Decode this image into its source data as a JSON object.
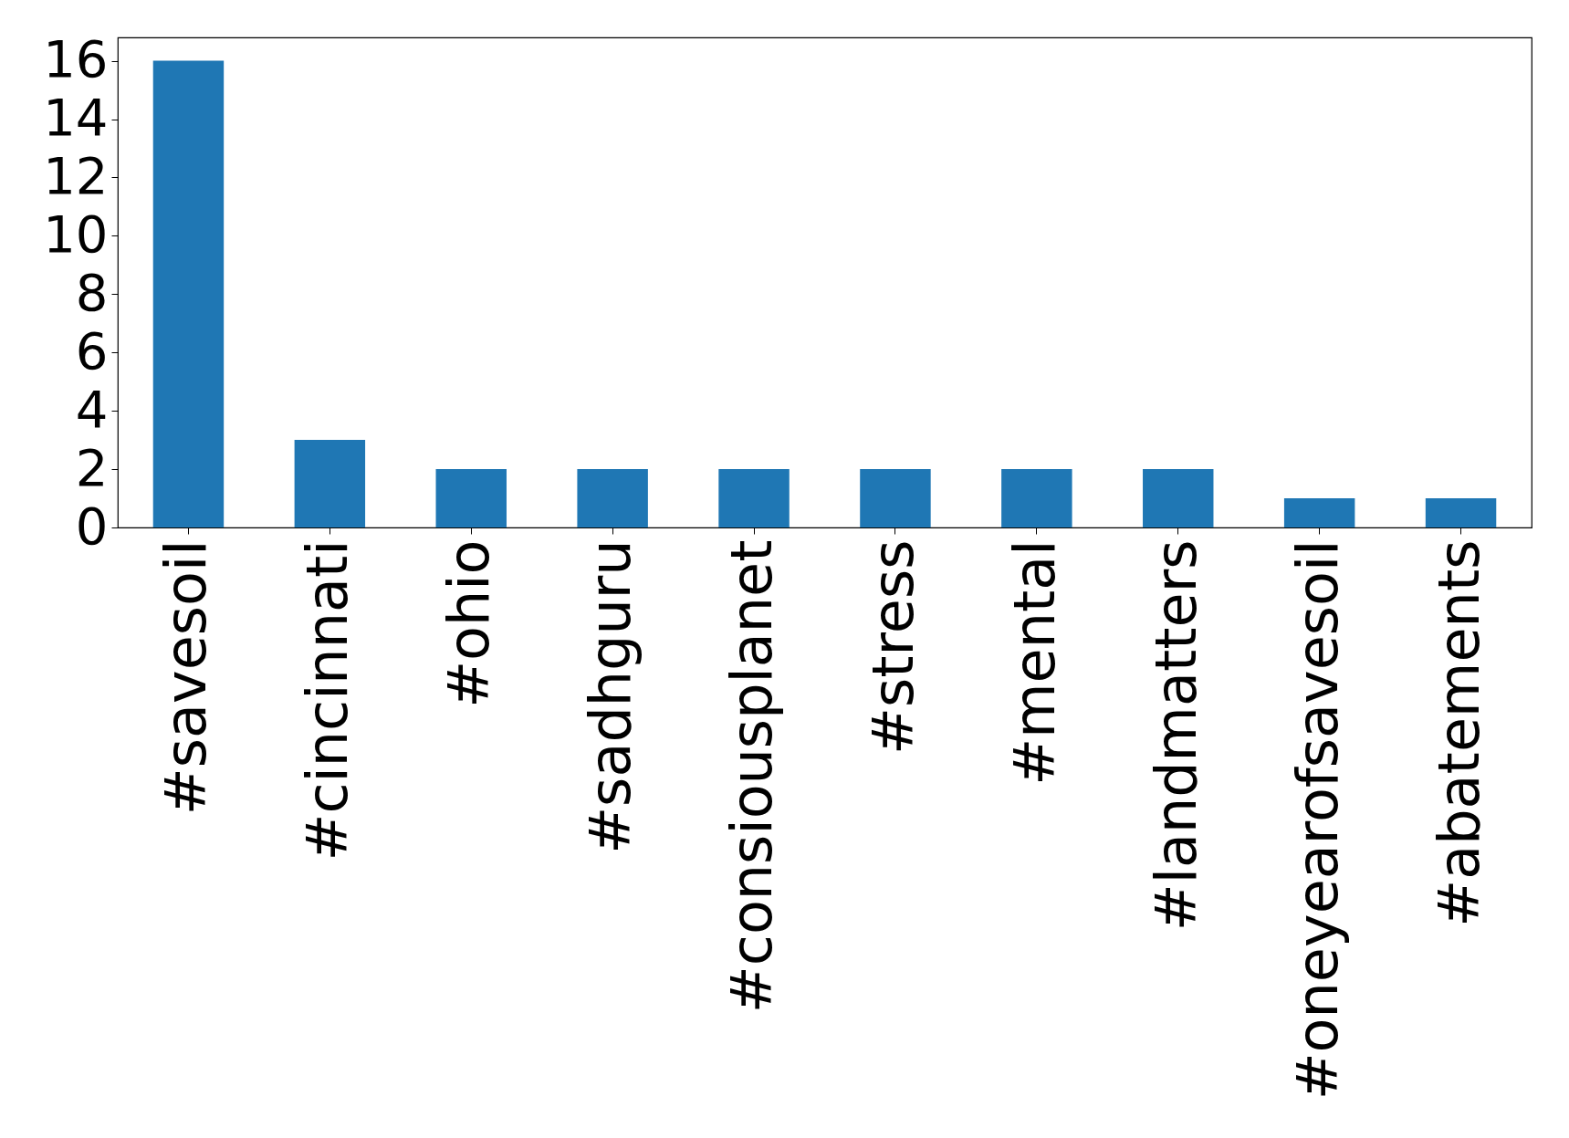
{
  "chart_data": {
    "type": "bar",
    "categories": [
      "#savesoil",
      "#cincinnati",
      "#ohio",
      "#sadhguru",
      "#consiousplanet",
      "#stress",
      "#mental",
      "#landmatters",
      "#oneyearofsavesoil",
      "#abatements"
    ],
    "values": [
      16,
      3,
      2,
      2,
      2,
      2,
      2,
      2,
      1,
      1
    ],
    "color": "#1f77b4",
    "ylim": [
      0,
      16.8
    ],
    "yticks": [
      0,
      2,
      4,
      6,
      8,
      10,
      12,
      14,
      16
    ],
    "grid": false
  }
}
